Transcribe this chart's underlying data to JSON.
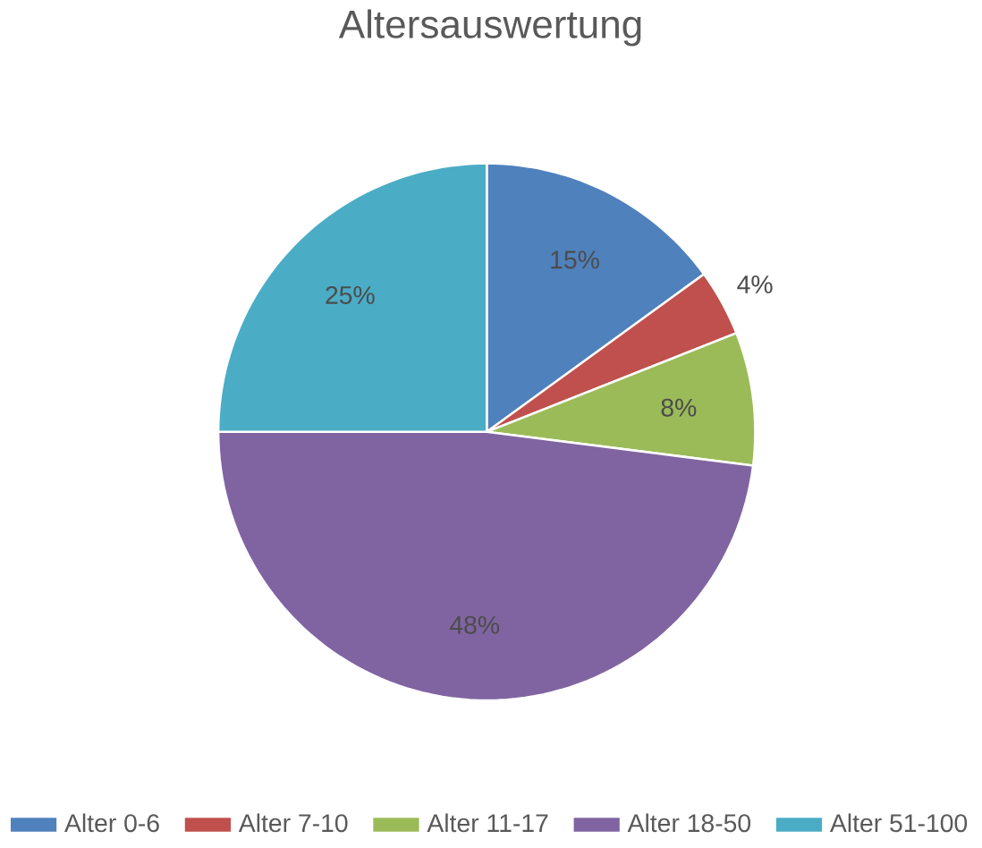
{
  "chart_data": {
    "type": "pie",
    "title": "Altersauswertung",
    "categories": [
      "Alter 0-6",
      "Alter 7-10",
      "Alter 11-17",
      "Alter 18-50",
      "Alter 51-100"
    ],
    "values": [
      15,
      4,
      8,
      48,
      25
    ],
    "colors": [
      "#4f81bd",
      "#c0504d",
      "#9bbb59",
      "#8064a2",
      "#4bacc6"
    ],
    "value_labels": [
      "15%",
      "4%",
      "8%",
      "48%",
      "25%"
    ],
    "legend": "bottom"
  }
}
